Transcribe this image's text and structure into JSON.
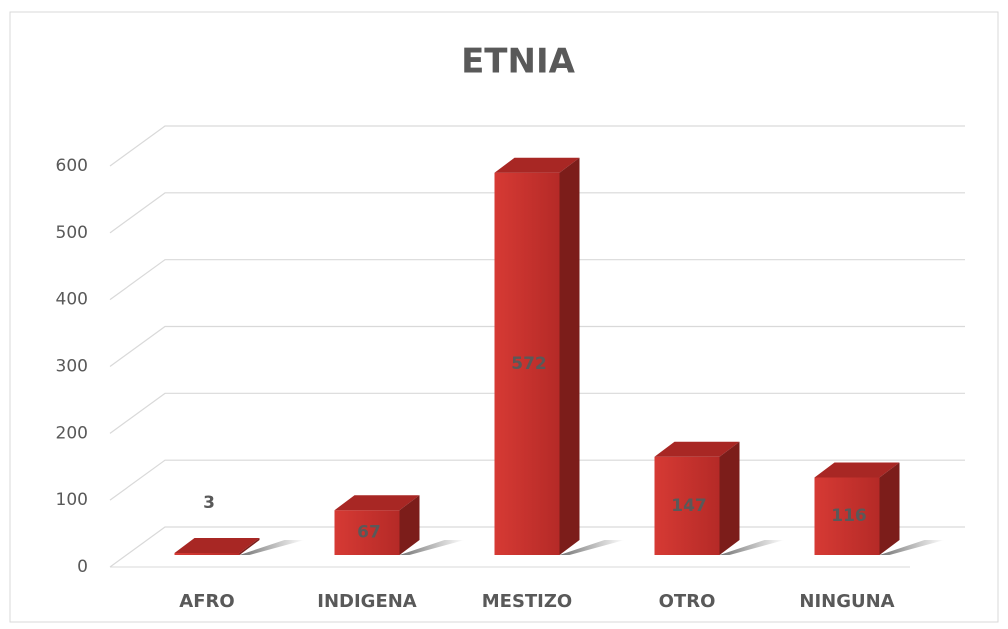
{
  "chart_data": {
    "type": "bar",
    "title": "ETNIA",
    "categories": [
      "AFRO",
      "INDIGENA",
      "MESTIZO",
      "OTRO",
      "NINGUNA"
    ],
    "values": [
      3,
      67,
      572,
      147,
      116
    ],
    "color": "#c8302c",
    "ylim": [
      0,
      600
    ],
    "yticks": [
      0,
      100,
      200,
      300,
      400,
      500,
      600
    ],
    "grid": true
  }
}
